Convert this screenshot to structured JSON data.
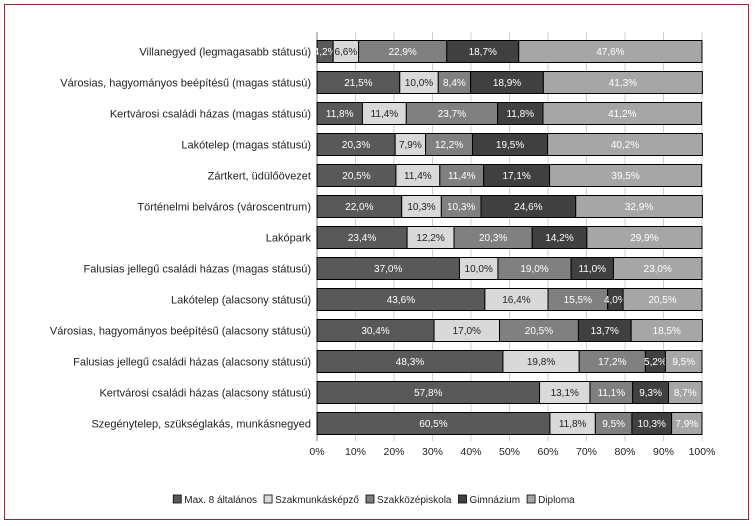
{
  "chart_data": {
    "type": "bar",
    "orientation": "horizontal",
    "stacked": true,
    "percent": true,
    "categories": [
      "Villanegyed (legmagasabb státusú)",
      "Városias, hagyományos beépítésű (magas státusú)",
      "Kertvárosi családi házas (magas státusú)",
      "Lakótelep (magas státusú)",
      "Zártkert, üdülőövezet",
      "Történelmi belváros (városcentrum)",
      "Lakópark",
      "Falusias jellegű családi házas (magas státusú)",
      "Lakótelep (alacsony státusú)",
      "Városias, hagyományos beépítésű (alacsony státusú)",
      "Falusias jellegű családi házas (alacsony státusú)",
      "Kertvárosi családi házas (alacsony státusú)",
      "Szegénytelep, szükséglakás, munkásnegyed"
    ],
    "series": [
      {
        "name": "Max. 8 általános",
        "color": "#595959",
        "label_color": "#ffffff",
        "values": [
          4.2,
          21.5,
          11.8,
          20.3,
          20.5,
          22.0,
          23.4,
          37.0,
          43.6,
          30.4,
          48.3,
          57.8,
          60.5
        ],
        "labels": [
          "4,2%",
          "21,5%",
          "11,8%",
          "20,3%",
          "20,5%",
          "22,0%",
          "23,4%",
          "37,0%",
          "43,6%",
          "30,4%",
          "48,3%",
          "57,8%",
          "60,5%"
        ]
      },
      {
        "name": "Szakmunkásképző",
        "color": "#d9d9d9",
        "label_color": "#222222",
        "values": [
          6.6,
          10.0,
          11.4,
          7.9,
          11.4,
          10.3,
          12.2,
          10.0,
          16.4,
          17.0,
          19.8,
          13.1,
          11.8
        ],
        "labels": [
          "6,6%",
          "10,0%",
          "11,4%",
          "7,9%",
          "11,4%",
          "10,3%",
          "12,2%",
          "10,0%",
          "16,4%",
          "17,0%",
          "19,8%",
          "13,1%",
          "11,8%"
        ]
      },
      {
        "name": "Szakközépiskola",
        "color": "#808080",
        "label_color": "#ffffff",
        "values": [
          22.9,
          8.4,
          23.7,
          12.2,
          11.4,
          10.3,
          20.3,
          19.0,
          15.5,
          20.5,
          17.2,
          11.1,
          9.5
        ],
        "labels": [
          "22,9%",
          "8,4%",
          "23,7%",
          "12,2%",
          "11,4%",
          "10,3%",
          "20,3%",
          "19,0%",
          "15,5%",
          "20,5%",
          "17,2%",
          "11,1%",
          "9,5%"
        ]
      },
      {
        "name": "Gimnázium",
        "color": "#404040",
        "label_color": "#ffffff",
        "values": [
          18.7,
          18.9,
          11.8,
          19.5,
          17.1,
          24.6,
          14.2,
          11.0,
          4.0,
          13.7,
          5.2,
          9.3,
          10.3
        ],
        "labels": [
          "18,7%",
          "18,9%",
          "11,8%",
          "19,5%",
          "17,1%",
          "24,6%",
          "14,2%",
          "11,0%",
          "4,0%",
          "13,7%",
          "5,2%",
          "9,3%",
          "10,3%"
        ]
      },
      {
        "name": "Diploma",
        "color": "#a6a6a6",
        "label_color": "#ffffff",
        "values": [
          47.6,
          41.3,
          41.2,
          40.2,
          39.5,
          32.9,
          29.9,
          23.0,
          20.5,
          18.5,
          9.5,
          8.7,
          7.9
        ],
        "labels": [
          "47,6%",
          "41,3%",
          "41,2%",
          "40,2%",
          "39,5%",
          "32,9%",
          "29,9%",
          "23,0%",
          "20,5%",
          "18,5%",
          "9,5%",
          "8,7%",
          "7,9%"
        ]
      }
    ],
    "x_ticks": [
      "0%",
      "10%",
      "20%",
      "30%",
      "40%",
      "50%",
      "60%",
      "70%",
      "80%",
      "90%",
      "100%"
    ],
    "xlim": [
      0,
      100
    ],
    "title": "",
    "xlabel": "",
    "ylabel": "",
    "grid": true,
    "legend": "bottom"
  }
}
